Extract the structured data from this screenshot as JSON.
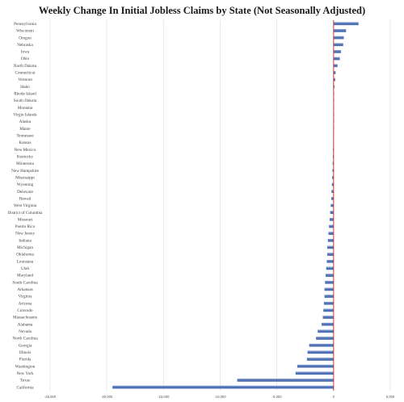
{
  "chart_data": {
    "type": "bar",
    "orientation": "horizontal",
    "title": "Weekly Change In Initial Jobless Claims by State (Not Seasonally Adjusted)",
    "xlabel": "",
    "ylabel": "",
    "xlim": [
      -25000,
      5000
    ],
    "x_ticks": [
      -25000,
      -20000,
      -15000,
      -10000,
      -5000,
      0,
      5000
    ],
    "x_tick_labels": [
      "-25,000",
      "-20,000",
      "-15,000",
      "-10,000",
      "-5,000",
      "0",
      "5,000"
    ],
    "grid": "vertical",
    "bar_color": "#4f6fb3",
    "zero_line_color": "#c0392b",
    "categories": [
      "Pennsylvania",
      "Wisconsin",
      "Oregon",
      "Nebraska",
      "Iowa",
      "Ohio",
      "North Dakota",
      "Connecticut",
      "Vermont",
      "Idaho",
      "Rhode Island",
      "South Dakota",
      "Montana",
      "Virgin Islands",
      "Alaska",
      "Maine",
      "Tennessee",
      "Kansas",
      "New Mexico",
      "Kentucky",
      "Minnesota",
      "New Hampshire",
      "Mississippi",
      "Wyoming",
      "Delaware",
      "Hawaii",
      "West Virginia",
      "District of Columbia",
      "Missouri",
      "Puerto Rico",
      "New Jersey",
      "Indiana",
      "Michigan",
      "Oklahoma",
      "Louisiana",
      "Utah",
      "Maryland",
      "South Carolina",
      "Arkansas",
      "Virginia",
      "Arizona",
      "Colorado",
      "Massachusetts",
      "Alabama",
      "Nevada",
      "North Carolina",
      "Georgia",
      "Illinois",
      "Florida",
      "Washington",
      "New York",
      "Texas",
      "California"
    ],
    "values": [
      2200,
      1100,
      900,
      850,
      650,
      550,
      350,
      180,
      150,
      80,
      40,
      30,
      20,
      15,
      10,
      5,
      0,
      -20,
      -50,
      -60,
      -80,
      -100,
      -120,
      -150,
      -180,
      -200,
      -250,
      -300,
      -350,
      -400,
      -450,
      -500,
      -550,
      -550,
      -600,
      -650,
      -700,
      -750,
      -800,
      -800,
      -850,
      -900,
      -950,
      -1050,
      -1400,
      -1550,
      -2150,
      -2300,
      -2350,
      -3200,
      -3350,
      -8500,
      -19500
    ]
  }
}
